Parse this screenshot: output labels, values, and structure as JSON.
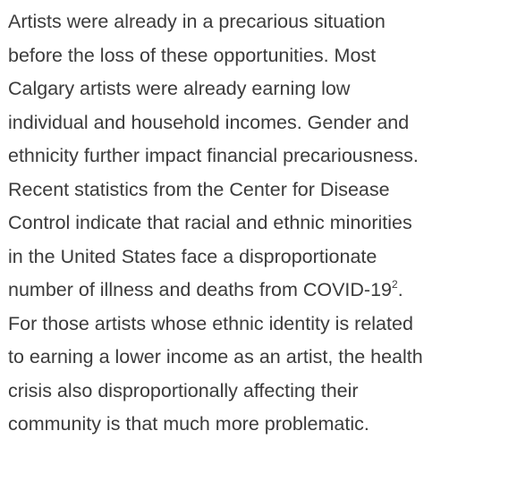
{
  "paragraph": {
    "lines": [
      "Artists were already in a precarious situation",
      "before the loss of these opportunities. Most",
      "Calgary artists were already earning low",
      "individual and household incomes. Gender and",
      "ethnicity further impact financial precariousness.",
      "Recent statistics from the Center for Disease",
      "Control indicate that racial and ethnic minorities",
      "in the United States face a disproportionate",
      {
        "text": "number of illness and deaths from COVID-19",
        "sup": "2",
        "after": "."
      },
      "For those artists whose ethnic identity is related",
      "to earning a lower income as an artist, the health",
      "crisis also disproportionally affecting their",
      "community is that much more problematic."
    ]
  }
}
